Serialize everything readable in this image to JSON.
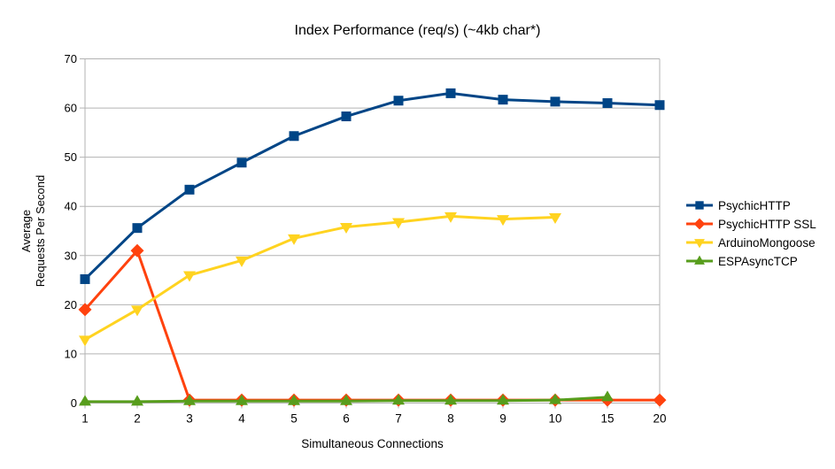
{
  "chart_data": {
    "type": "line",
    "title": "Index Performance (req/s) (~4kb char*)",
    "xlabel": "Simultaneous Connections",
    "ylabel_line1": "Average",
    "ylabel_line2": "Requests Per Second",
    "categories": [
      "1",
      "2",
      "3",
      "4",
      "5",
      "6",
      "7",
      "8",
      "9",
      "10",
      "15",
      "20"
    ],
    "yticks": [
      0,
      10,
      20,
      30,
      40,
      50,
      60,
      70
    ],
    "ylim": [
      0,
      70
    ],
    "grid": "horizontal",
    "legend_position": "right",
    "colors": {
      "grid": "#b3b3b3",
      "axis": "#b3b3b3",
      "text": "#000000",
      "background": "#ffffff"
    },
    "series": [
      {
        "name": "PsychicHTTP",
        "color": "#004586",
        "marker": "square",
        "values": [
          25.2,
          35.6,
          43.4,
          48.9,
          54.3,
          58.3,
          61.5,
          63.0,
          61.7,
          61.3,
          61.0,
          60.6
        ]
      },
      {
        "name": "PsychicHTTP SSL",
        "color": "#ff420e",
        "marker": "diamond",
        "values": [
          19.0,
          31.0,
          0.6,
          0.6,
          0.6,
          0.6,
          0.6,
          0.6,
          0.6,
          0.6,
          0.6,
          0.6
        ]
      },
      {
        "name": "ArduinoMongoose",
        "color": "#ffd320",
        "marker": "triangle-down",
        "values": [
          12.9,
          19.0,
          26.0,
          29.0,
          33.5,
          35.8,
          36.8,
          38.0,
          37.4,
          37.8
        ]
      },
      {
        "name": "ESPAsyncTCP",
        "color": "#579d1c",
        "marker": "triangle-up",
        "values": [
          0.3,
          0.3,
          0.4,
          0.4,
          0.4,
          0.4,
          0.5,
          0.5,
          0.5,
          0.6,
          1.2
        ]
      }
    ]
  }
}
